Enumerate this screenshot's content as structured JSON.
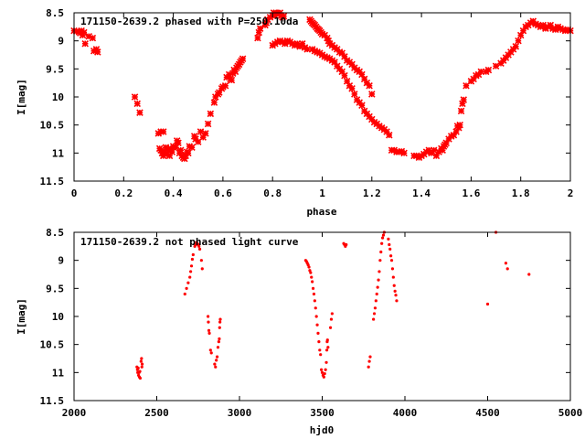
{
  "chart_data": [
    {
      "type": "scatter",
      "title": "171150-2639.2 phased with P=250.10da",
      "xlabel": "phase",
      "ylabel": "I[mag]",
      "xlim": [
        0,
        2
      ],
      "ylim": [
        11.5,
        8.5
      ],
      "y_inverted": true,
      "grid": false,
      "point_color": "#ff0000",
      "marker": "cross",
      "xticks": [
        "0",
        "0.2",
        "0.4",
        "0.6",
        "0.8",
        "1",
        "1.2",
        "1.4",
        "1.6",
        "1.8",
        "2"
      ],
      "yticks": [
        "8.5",
        "9",
        "9.5",
        "10",
        "10.5",
        "11",
        "11.5"
      ],
      "points": [
        [
          0.0,
          8.82
        ],
        [
          0.01,
          8.83
        ],
        [
          0.02,
          8.84
        ],
        [
          0.025,
          8.86
        ],
        [
          0.03,
          8.82
        ],
        [
          0.04,
          8.85
        ],
        [
          0.035,
          8.9
        ],
        [
          0.045,
          9.05
        ],
        [
          0.06,
          8.92
        ],
        [
          0.075,
          8.95
        ],
        [
          0.08,
          9.18
        ],
        [
          0.09,
          9.15
        ],
        [
          0.095,
          9.2
        ],
        [
          0.245,
          10.0
        ],
        [
          0.255,
          10.12
        ],
        [
          0.265,
          10.28
        ],
        [
          0.34,
          10.65
        ],
        [
          0.35,
          10.62
        ],
        [
          0.36,
          10.62
        ],
        [
          0.345,
          10.92
        ],
        [
          0.35,
          10.95
        ],
        [
          0.355,
          11.0
        ],
        [
          0.36,
          11.05
        ],
        [
          0.365,
          10.98
        ],
        [
          0.37,
          10.9
        ],
        [
          0.375,
          11.02
        ],
        [
          0.38,
          10.95
        ],
        [
          0.385,
          11.05
        ],
        [
          0.39,
          10.92
        ],
        [
          0.395,
          10.98
        ],
        [
          0.4,
          10.88
        ],
        [
          0.41,
          10.9
        ],
        [
          0.415,
          10.78
        ],
        [
          0.42,
          10.82
        ],
        [
          0.425,
          11.0
        ],
        [
          0.43,
          10.95
        ],
        [
          0.435,
          11.05
        ],
        [
          0.44,
          11.08
        ],
        [
          0.445,
          11.1
        ],
        [
          0.45,
          11.05
        ],
        [
          0.455,
          10.98
        ],
        [
          0.46,
          11.0
        ],
        [
          0.465,
          10.88
        ],
        [
          0.475,
          10.9
        ],
        [
          0.485,
          10.7
        ],
        [
          0.49,
          10.75
        ],
        [
          0.5,
          10.8
        ],
        [
          0.51,
          10.62
        ],
        [
          0.52,
          10.72
        ],
        [
          0.53,
          10.65
        ],
        [
          0.54,
          10.48
        ],
        [
          0.55,
          10.3
        ],
        [
          0.565,
          10.1
        ],
        [
          0.57,
          10.0
        ],
        [
          0.58,
          9.95
        ],
        [
          0.585,
          9.92
        ],
        [
          0.595,
          9.85
        ],
        [
          0.6,
          9.82
        ],
        [
          0.61,
          9.8
        ],
        [
          0.615,
          9.65
        ],
        [
          0.625,
          9.6
        ],
        [
          0.63,
          9.68
        ],
        [
          0.635,
          9.7
        ],
        [
          0.64,
          9.58
        ],
        [
          0.645,
          9.52
        ],
        [
          0.65,
          9.55
        ],
        [
          0.655,
          9.48
        ],
        [
          0.66,
          9.45
        ],
        [
          0.665,
          9.42
        ],
        [
          0.67,
          9.38
        ],
        [
          0.675,
          9.35
        ],
        [
          0.68,
          9.32
        ],
        [
          0.74,
          8.95
        ],
        [
          0.745,
          8.85
        ],
        [
          0.75,
          8.78
        ],
        [
          0.77,
          8.72
        ],
        [
          0.775,
          8.68
        ],
        [
          0.78,
          8.62
        ],
        [
          0.79,
          8.58
        ],
        [
          0.8,
          8.55
        ],
        [
          0.805,
          8.5
        ],
        [
          0.81,
          8.55
        ],
        [
          0.815,
          8.5
        ],
        [
          0.82,
          8.48
        ],
        [
          0.825,
          8.52
        ],
        [
          0.83,
          8.5
        ],
        [
          0.835,
          8.55
        ],
        [
          0.84,
          8.58
        ],
        [
          0.845,
          8.56
        ],
        [
          0.8,
          9.08
        ],
        [
          0.81,
          9.05
        ],
        [
          0.82,
          9.02
        ],
        [
          0.83,
          9.0
        ],
        [
          0.84,
          9.02
        ],
        [
          0.85,
          9.05
        ],
        [
          0.86,
          9.0
        ],
        [
          0.87,
          9.02
        ],
        [
          0.88,
          9.05
        ],
        [
          0.89,
          9.08
        ],
        [
          0.9,
          9.05
        ],
        [
          0.91,
          9.1
        ],
        [
          0.92,
          9.05
        ],
        [
          0.93,
          9.12
        ],
        [
          0.94,
          9.15
        ],
        [
          0.95,
          8.62
        ],
        [
          0.955,
          8.65
        ],
        [
          0.96,
          8.68
        ],
        [
          0.965,
          8.7
        ],
        [
          0.97,
          8.72
        ],
        [
          0.975,
          8.75
        ],
        [
          0.98,
          8.78
        ],
        [
          0.985,
          8.8
        ],
        [
          0.99,
          8.82
        ],
        [
          0.995,
          8.85
        ],
        [
          1.0,
          8.88
        ],
        [
          1.01,
          8.9
        ],
        [
          1.02,
          8.95
        ],
        [
          1.025,
          9.0
        ],
        [
          1.03,
          9.05
        ],
        [
          1.04,
          9.08
        ],
        [
          1.05,
          9.12
        ],
        [
          1.06,
          9.15
        ],
        [
          1.07,
          9.2
        ],
        [
          1.08,
          9.22
        ],
        [
          1.09,
          9.28
        ],
        [
          1.1,
          9.35
        ],
        [
          1.11,
          9.38
        ],
        [
          1.12,
          9.42
        ],
        [
          1.13,
          9.48
        ],
        [
          1.14,
          9.52
        ],
        [
          1.15,
          9.55
        ],
        [
          1.16,
          9.6
        ],
        [
          1.17,
          9.68
        ],
        [
          1.18,
          9.75
        ],
        [
          1.19,
          9.8
        ],
        [
          1.2,
          9.95
        ],
        [
          0.96,
          9.15
        ],
        [
          0.97,
          9.18
        ],
        [
          0.98,
          9.2
        ],
        [
          0.99,
          9.22
        ],
        [
          1.0,
          9.25
        ],
        [
          1.01,
          9.28
        ],
        [
          1.02,
          9.3
        ],
        [
          1.03,
          9.32
        ],
        [
          1.04,
          9.35
        ],
        [
          1.05,
          9.38
        ],
        [
          1.06,
          9.45
        ],
        [
          1.07,
          9.5
        ],
        [
          1.08,
          9.55
        ],
        [
          1.09,
          9.62
        ],
        [
          1.1,
          9.72
        ],
        [
          1.11,
          9.8
        ],
        [
          1.12,
          9.85
        ],
        [
          1.13,
          9.95
        ],
        [
          1.14,
          10.05
        ],
        [
          1.15,
          10.1
        ],
        [
          1.16,
          10.15
        ],
        [
          1.17,
          10.25
        ],
        [
          1.18,
          10.3
        ],
        [
          1.19,
          10.35
        ],
        [
          1.2,
          10.4
        ],
        [
          1.21,
          10.45
        ],
        [
          1.22,
          10.48
        ],
        [
          1.23,
          10.52
        ],
        [
          1.24,
          10.55
        ],
        [
          1.25,
          10.58
        ],
        [
          1.26,
          10.62
        ],
        [
          1.27,
          10.68
        ],
        [
          1.28,
          10.95
        ],
        [
          1.29,
          10.95
        ],
        [
          1.3,
          10.98
        ],
        [
          1.31,
          10.98
        ],
        [
          1.32,
          10.97
        ],
        [
          1.33,
          11.0
        ],
        [
          1.37,
          11.05
        ],
        [
          1.38,
          11.05
        ],
        [
          1.39,
          11.08
        ],
        [
          1.4,
          11.05
        ],
        [
          1.41,
          11.02
        ],
        [
          1.42,
          10.98
        ],
        [
          1.43,
          10.95
        ],
        [
          1.44,
          11.0
        ],
        [
          1.45,
          10.95
        ],
        [
          1.46,
          11.05
        ],
        [
          1.47,
          10.98
        ],
        [
          1.48,
          10.92
        ],
        [
          1.485,
          10.95
        ],
        [
          1.49,
          10.88
        ],
        [
          1.495,
          10.85
        ],
        [
          1.5,
          10.82
        ],
        [
          1.51,
          10.75
        ],
        [
          1.52,
          10.7
        ],
        [
          1.53,
          10.68
        ],
        [
          1.54,
          10.62
        ],
        [
          1.55,
          10.55
        ],
        [
          1.555,
          10.5
        ],
        [
          1.545,
          10.52
        ],
        [
          1.56,
          10.25
        ],
        [
          1.565,
          10.12
        ],
        [
          1.57,
          10.05
        ],
        [
          1.58,
          9.8
        ],
        [
          1.6,
          9.72
        ],
        [
          1.61,
          9.68
        ],
        [
          1.62,
          9.62
        ],
        [
          1.63,
          9.6
        ],
        [
          1.64,
          9.55
        ],
        [
          1.66,
          9.55
        ],
        [
          1.67,
          9.52
        ],
        [
          1.7,
          9.45
        ],
        [
          1.72,
          9.4
        ],
        [
          1.73,
          9.35
        ],
        [
          1.74,
          9.3
        ],
        [
          1.75,
          9.25
        ],
        [
          1.76,
          9.2
        ],
        [
          1.77,
          9.15
        ],
        [
          1.78,
          9.1
        ],
        [
          1.79,
          9.0
        ],
        [
          1.8,
          8.9
        ],
        [
          1.81,
          8.82
        ],
        [
          1.82,
          8.75
        ],
        [
          1.83,
          8.72
        ],
        [
          1.84,
          8.68
        ],
        [
          1.85,
          8.65
        ],
        [
          1.86,
          8.7
        ],
        [
          1.87,
          8.72
        ],
        [
          1.88,
          8.75
        ],
        [
          1.89,
          8.72
        ],
        [
          1.9,
          8.78
        ],
        [
          1.91,
          8.75
        ],
        [
          1.92,
          8.72
        ],
        [
          1.93,
          8.78
        ],
        [
          1.94,
          8.8
        ],
        [
          1.95,
          8.75
        ],
        [
          1.96,
          8.78
        ],
        [
          1.97,
          8.8
        ],
        [
          1.98,
          8.82
        ],
        [
          1.99,
          8.8
        ],
        [
          2.0,
          8.82
        ]
      ]
    },
    {
      "type": "scatter",
      "title": "171150-2639.2 not phased light curve",
      "xlabel": "hjd0",
      "ylabel": "I[mag]",
      "xlim": [
        2000,
        5000
      ],
      "ylim": [
        11.5,
        8.5
      ],
      "y_inverted": true,
      "grid": false,
      "point_color": "#ff0000",
      "marker": "dot",
      "xticks": [
        "2000",
        "2500",
        "3000",
        "3500",
        "4000",
        "4500",
        "5000"
      ],
      "yticks": [
        "8.5",
        "9",
        "9.5",
        "10",
        "10.5",
        "11",
        "11.5"
      ],
      "points": [
        [
          2380,
          10.9
        ],
        [
          2383,
          10.95
        ],
        [
          2385,
          11.0
        ],
        [
          2388,
          10.92
        ],
        [
          2390,
          11.05
        ],
        [
          2393,
          11.0
        ],
        [
          2395,
          11.08
        ],
        [
          2398,
          10.98
        ],
        [
          2400,
          11.1
        ],
        [
          2405,
          10.8
        ],
        [
          2408,
          10.75
        ],
        [
          2410,
          10.9
        ],
        [
          2412,
          10.85
        ],
        [
          2670,
          9.6
        ],
        [
          2680,
          9.5
        ],
        [
          2690,
          9.4
        ],
        [
          2700,
          9.3
        ],
        [
          2705,
          9.2
        ],
        [
          2710,
          9.1
        ],
        [
          2715,
          8.98
        ],
        [
          2720,
          8.9
        ],
        [
          2730,
          8.75
        ],
        [
          2735,
          8.72
        ],
        [
          2740,
          8.68
        ],
        [
          2745,
          8.7
        ],
        [
          2750,
          8.72
        ],
        [
          2755,
          8.75
        ],
        [
          2760,
          8.8
        ],
        [
          2770,
          9.0
        ],
        [
          2775,
          9.15
        ],
        [
          2810,
          10.0
        ],
        [
          2812,
          10.1
        ],
        [
          2815,
          10.25
        ],
        [
          2818,
          10.3
        ],
        [
          2825,
          10.6
        ],
        [
          2830,
          10.65
        ],
        [
          2850,
          10.85
        ],
        [
          2855,
          10.9
        ],
        [
          2860,
          10.78
        ],
        [
          2865,
          10.72
        ],
        [
          2870,
          10.55
        ],
        [
          2875,
          10.45
        ],
        [
          2878,
          10.4
        ],
        [
          2880,
          10.2
        ],
        [
          2882,
          10.1
        ],
        [
          2884,
          10.05
        ],
        [
          3400,
          9.0
        ],
        [
          3405,
          9.02
        ],
        [
          3410,
          9.05
        ],
        [
          3415,
          9.08
        ],
        [
          3420,
          9.12
        ],
        [
          3425,
          9.18
        ],
        [
          3430,
          9.22
        ],
        [
          3435,
          9.3
        ],
        [
          3440,
          9.38
        ],
        [
          3445,
          9.5
        ],
        [
          3450,
          9.6
        ],
        [
          3455,
          9.72
        ],
        [
          3460,
          9.85
        ],
        [
          3465,
          10.0
        ],
        [
          3470,
          10.15
        ],
        [
          3475,
          10.3
        ],
        [
          3480,
          10.45
        ],
        [
          3485,
          10.6
        ],
        [
          3490,
          10.68
        ],
        [
          3495,
          10.95
        ],
        [
          3500,
          11.0
        ],
        [
          3505,
          11.05
        ],
        [
          3510,
          11.08
        ],
        [
          3515,
          11.02
        ],
        [
          3520,
          10.95
        ],
        [
          3525,
          10.82
        ],
        [
          3528,
          10.6
        ],
        [
          3530,
          10.45
        ],
        [
          3532,
          10.42
        ],
        [
          3535,
          10.55
        ],
        [
          3550,
          10.2
        ],
        [
          3555,
          10.05
        ],
        [
          3560,
          9.95
        ],
        [
          3630,
          8.7
        ],
        [
          3635,
          8.72
        ],
        [
          3640,
          8.75
        ],
        [
          3645,
          8.72
        ],
        [
          3780,
          10.9
        ],
        [
          3785,
          10.8
        ],
        [
          3790,
          10.72
        ],
        [
          3810,
          10.05
        ],
        [
          3815,
          9.95
        ],
        [
          3820,
          9.85
        ],
        [
          3825,
          9.72
        ],
        [
          3830,
          9.6
        ],
        [
          3835,
          9.48
        ],
        [
          3840,
          9.35
        ],
        [
          3845,
          9.2
        ],
        [
          3850,
          9.0
        ],
        [
          3855,
          8.85
        ],
        [
          3860,
          8.7
        ],
        [
          3865,
          8.6
        ],
        [
          3870,
          8.55
        ],
        [
          3875,
          8.5
        ],
        [
          3900,
          8.62
        ],
        [
          3905,
          8.72
        ],
        [
          3910,
          8.8
        ],
        [
          3915,
          8.92
        ],
        [
          3920,
          9.0
        ],
        [
          3925,
          9.15
        ],
        [
          3930,
          9.3
        ],
        [
          3935,
          9.45
        ],
        [
          3940,
          9.55
        ],
        [
          3945,
          9.62
        ],
        [
          3950,
          9.72
        ],
        [
          4500,
          9.78
        ],
        [
          4550,
          8.5
        ],
        [
          4610,
          9.05
        ],
        [
          4620,
          9.15
        ],
        [
          4750,
          9.25
        ]
      ]
    }
  ]
}
